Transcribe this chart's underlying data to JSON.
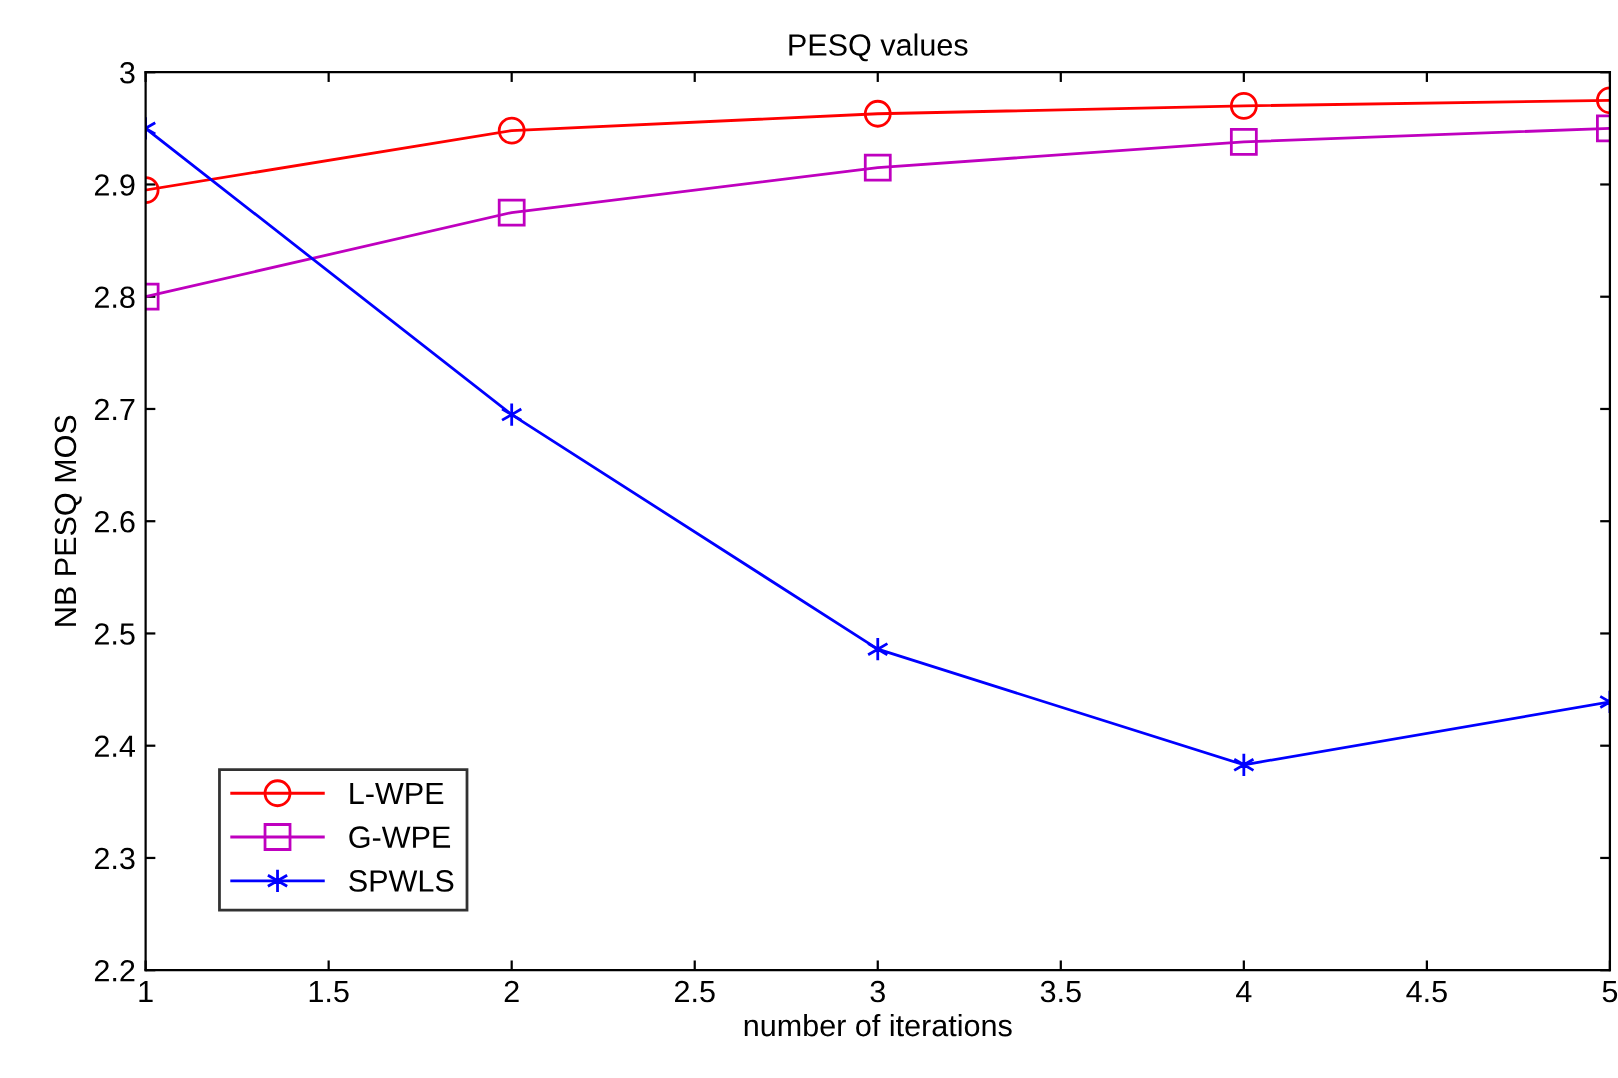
{
  "chart_data": {
    "type": "line",
    "title": "PESQ values",
    "xlabel": "number of iterations",
    "ylabel": "NB PESQ MOS",
    "x": [
      1,
      2,
      3,
      4,
      5
    ],
    "series": [
      {
        "name": "L-WPE",
        "color": "#ff0000",
        "marker": "circle",
        "values": [
          2.895,
          2.948,
          2.963,
          2.97,
          2.975
        ]
      },
      {
        "name": "G-WPE",
        "color": "#bf00bf",
        "marker": "square",
        "values": [
          2.8,
          2.875,
          2.915,
          2.938,
          2.95
        ]
      },
      {
        "name": "SPWLS",
        "color": "#0000ff",
        "marker": "cross",
        "values": [
          2.95,
          2.695,
          2.486,
          2.383,
          2.439
        ]
      }
    ],
    "xlim": [
      1,
      5
    ],
    "xticks": [
      1,
      1.5,
      2,
      2.5,
      3,
      3.5,
      4,
      4.5,
      5
    ],
    "ylim": [
      2.2,
      3
    ],
    "yticks": [
      2.2,
      2.3,
      2.4,
      2.5,
      2.6,
      2.7,
      2.8,
      2.9,
      3
    ],
    "grid": false,
    "legend": "bottom left",
    "line_style": "solid"
  }
}
